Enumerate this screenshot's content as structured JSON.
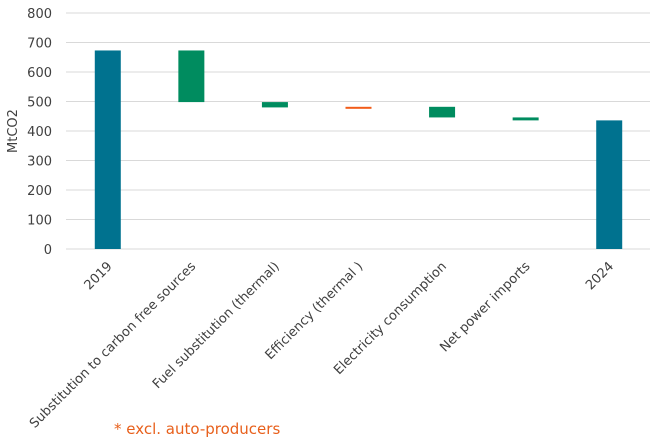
{
  "chart_data": {
    "type": "waterfall",
    "ylabel": "MtCO2",
    "ylim": [
      0,
      800
    ],
    "yticks": [
      0,
      100,
      200,
      300,
      400,
      500,
      600,
      700,
      800
    ],
    "grid": true,
    "categories": [
      "2019",
      "Substitution to carbon free sources",
      "Fuel substitution (thermal)",
      "Efficiency (thermal )",
      "Electricity consumption",
      "Net power imports",
      "2024"
    ],
    "steps": [
      {
        "kind": "total",
        "value": 673
      },
      {
        "kind": "delta",
        "value": -175
      },
      {
        "kind": "delta",
        "value": -18
      },
      {
        "kind": "delta",
        "value": 2
      },
      {
        "kind": "delta",
        "value": -36
      },
      {
        "kind": "delta",
        "value": -10
      },
      {
        "kind": "total",
        "value": 436
      }
    ],
    "colors": {
      "total": "#00728f",
      "decrease": "#008c5f",
      "increase": "#f25c19"
    }
  },
  "footnote": "* excl. auto-producers"
}
